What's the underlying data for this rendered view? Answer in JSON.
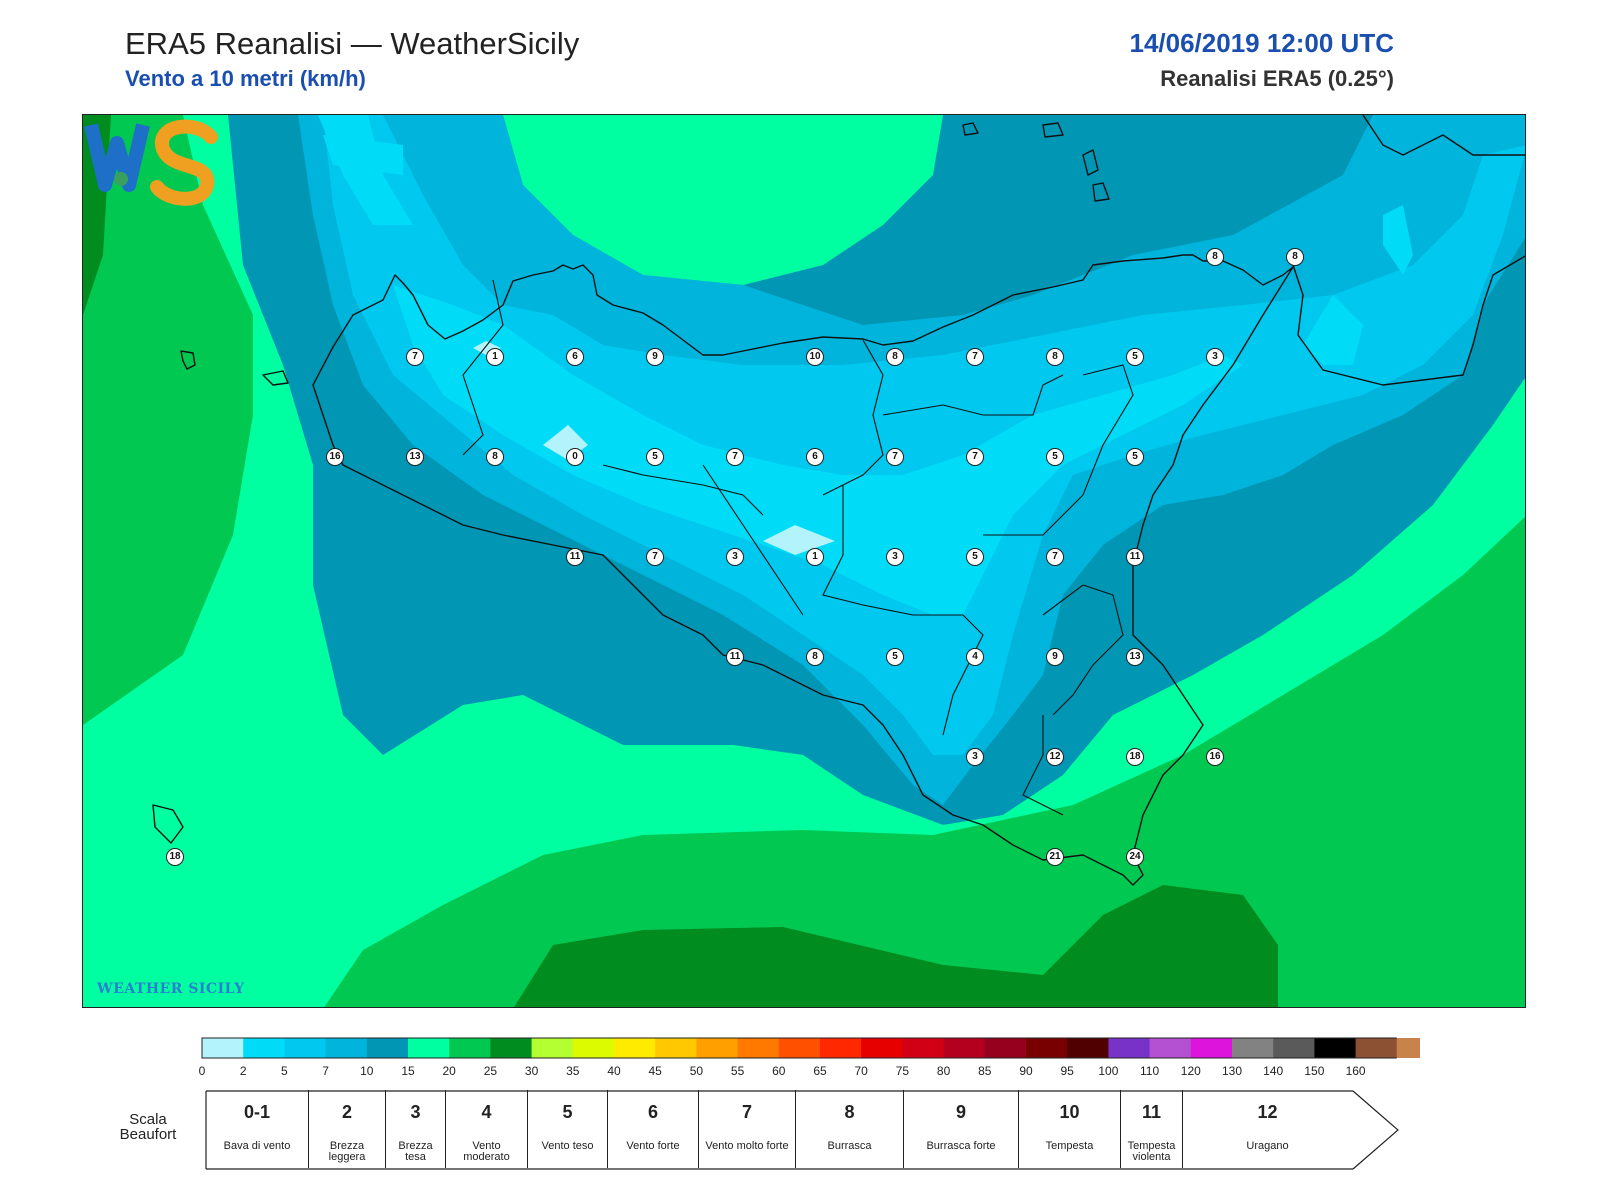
{
  "header": {
    "title": "ERA5 Reanalisi — WeatherSicily",
    "subtitle": "Vento a 10 metri (km/h)",
    "datetime": "14/06/2019 12:00 UTC",
    "product": "Reanalisi ERA5 (0.25°)"
  },
  "map": {
    "stations": [
      {
        "v": "7",
        "gx": 0,
        "gy": 0
      },
      {
        "v": "1",
        "gx": 1,
        "gy": 0
      },
      {
        "v": "6",
        "gx": 2,
        "gy": 0
      },
      {
        "v": "9",
        "gx": 3,
        "gy": 0
      },
      {
        "v": "10",
        "gx": 5,
        "gy": 0
      },
      {
        "v": "8",
        "gx": 6,
        "gy": 0
      },
      {
        "v": "7",
        "gx": 7,
        "gy": 0
      },
      {
        "v": "8",
        "gx": 8,
        "gy": 0
      },
      {
        "v": "5",
        "gx": 9,
        "gy": 0
      },
      {
        "v": "3",
        "gx": 10,
        "gy": 0
      },
      {
        "v": "16",
        "gx": -1,
        "gy": 1
      },
      {
        "v": "13",
        "gx": 0,
        "gy": 1
      },
      {
        "v": "8",
        "gx": 1,
        "gy": 1
      },
      {
        "v": "0",
        "gx": 2,
        "gy": 1
      },
      {
        "v": "5",
        "gx": 3,
        "gy": 1
      },
      {
        "v": "7",
        "gx": 4,
        "gy": 1
      },
      {
        "v": "6",
        "gx": 5,
        "gy": 1
      },
      {
        "v": "7",
        "gx": 6,
        "gy": 1
      },
      {
        "v": "7",
        "gx": 7,
        "gy": 1
      },
      {
        "v": "5",
        "gx": 8,
        "gy": 1
      },
      {
        "v": "5",
        "gx": 9,
        "gy": 1
      },
      {
        "v": "11",
        "gx": 2,
        "gy": 2
      },
      {
        "v": "7",
        "gx": 3,
        "gy": 2
      },
      {
        "v": "3",
        "gx": 4,
        "gy": 2
      },
      {
        "v": "1",
        "gx": 5,
        "gy": 2
      },
      {
        "v": "3",
        "gx": 6,
        "gy": 2
      },
      {
        "v": "5",
        "gx": 7,
        "gy": 2
      },
      {
        "v": "7",
        "gx": 8,
        "gy": 2
      },
      {
        "v": "11",
        "gx": 9,
        "gy": 2
      },
      {
        "v": "11",
        "gx": 4,
        "gy": 3
      },
      {
        "v": "8",
        "gx": 5,
        "gy": 3
      },
      {
        "v": "5",
        "gx": 6,
        "gy": 3
      },
      {
        "v": "4",
        "gx": 7,
        "gy": 3
      },
      {
        "v": "9",
        "gx": 8,
        "gy": 3
      },
      {
        "v": "13",
        "gx": 9,
        "gy": 3
      },
      {
        "v": "3",
        "gx": 7,
        "gy": 4
      },
      {
        "v": "12",
        "gx": 8,
        "gy": 4
      },
      {
        "v": "18",
        "gx": 9,
        "gy": 4
      },
      {
        "v": "16",
        "gx": 10,
        "gy": 4
      },
      {
        "v": "21",
        "gx": 8,
        "gy": 5
      },
      {
        "v": "24",
        "gx": 9,
        "gy": 5
      },
      {
        "v": "18",
        "gx": -3,
        "gy": 5
      },
      {
        "v": "8",
        "gx": 10,
        "gy": -1
      },
      {
        "v": "8",
        "gx": 11,
        "gy": -1
      }
    ]
  },
  "logo": {
    "brand": "WEATHER SICILY",
    "mark": "WS"
  },
  "colorbar": {
    "ticks": [
      "0",
      "2",
      "5",
      "7",
      "10",
      "15",
      "20",
      "25",
      "30",
      "35",
      "40",
      "45",
      "50",
      "55",
      "60",
      "65",
      "70",
      "75",
      "80",
      "85",
      "90",
      "95",
      "100",
      "110",
      "120",
      "130",
      "140",
      "150",
      "160"
    ],
    "colors": [
      "#b3f4fc",
      "#00dcf7",
      "#00c8ee",
      "#00b4dc",
      "#0096b4",
      "#00ffa0",
      "#00c850",
      "#008c1e",
      "#b4ff32",
      "#dcfa00",
      "#ffeb00",
      "#ffc800",
      "#ffa000",
      "#ff7800",
      "#ff5000",
      "#ff2800",
      "#e60000",
      "#d20014",
      "#b4001e",
      "#96001e",
      "#780000",
      "#500000",
      "#7832c8",
      "#b450d2",
      "#dc14dc",
      "#828282",
      "#5a5a5a",
      "#000000",
      "#8c5032",
      "#c8824b"
    ]
  },
  "beaufort": {
    "title": "Scala Beaufort",
    "items": [
      {
        "num": "0-1",
        "desc": "Bava di vento"
      },
      {
        "num": "2",
        "desc": "Brezza leggera"
      },
      {
        "num": "3",
        "desc": "Brezza tesa"
      },
      {
        "num": "4",
        "desc": "Vento moderato"
      },
      {
        "num": "5",
        "desc": "Vento teso"
      },
      {
        "num": "6",
        "desc": "Vento forte"
      },
      {
        "num": "7",
        "desc": "Vento molto forte"
      },
      {
        "num": "8",
        "desc": "Burrasca"
      },
      {
        "num": "9",
        "desc": "Burrasca forte"
      },
      {
        "num": "10",
        "desc": "Tempesta"
      },
      {
        "num": "11",
        "desc": "Tempesta violenta"
      },
      {
        "num": "12",
        "desc": "Uragano"
      }
    ]
  }
}
